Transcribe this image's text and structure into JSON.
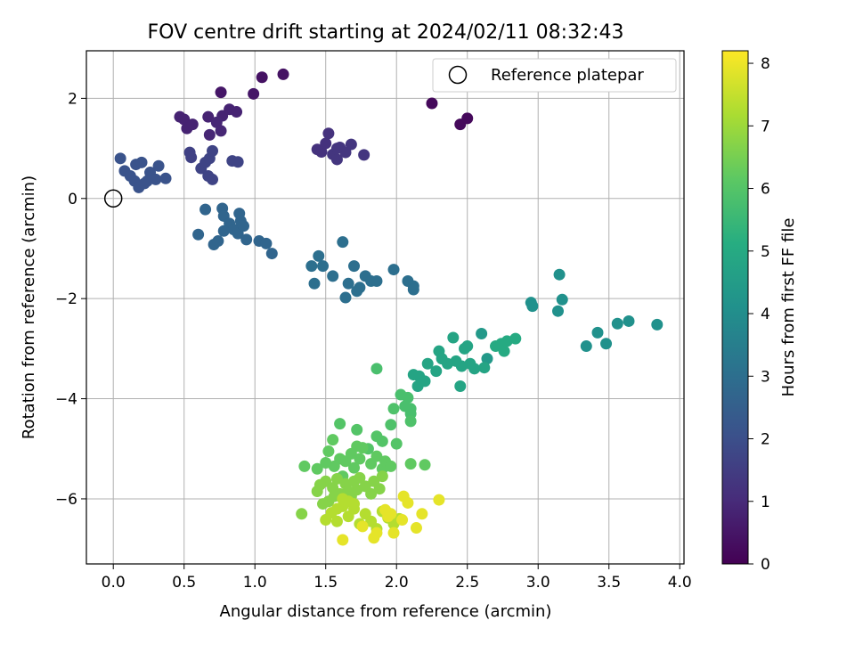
{
  "chart_data": {
    "type": "scatter",
    "title": "FOV centre drift starting at 2024/02/11 08:32:43",
    "xlabel": "Angular distance from reference (arcmin)",
    "ylabel": "Rotation from reference (arcmin)",
    "xlim": [
      -0.19,
      4.03
    ],
    "ylim": [
      -7.3,
      2.95
    ],
    "x_ticks": [
      "0.0",
      "0.5",
      "1.0",
      "1.5",
      "2.0",
      "2.5",
      "3.0",
      "3.5",
      "4.0"
    ],
    "y_ticks": [
      "2",
      "0",
      "−2",
      "−4",
      "−6"
    ],
    "grid": true,
    "legend": {
      "position": "top-right",
      "entries": [
        "Reference platepar"
      ]
    },
    "reference_point": {
      "x": 0.0,
      "y": 0.0
    },
    "colorbar": {
      "label": "Hours from first FF file",
      "range": [
        0,
        8.2
      ],
      "ticks": [
        "0",
        "1",
        "2",
        "3",
        "4",
        "5",
        "6",
        "7",
        "8"
      ],
      "colormap": "viridis"
    },
    "points": [
      [
        2.25,
        1.9,
        0.2
      ],
      [
        2.45,
        1.48,
        0.2
      ],
      [
        2.5,
        1.6,
        0.2
      ],
      [
        1.05,
        2.42,
        0.4
      ],
      [
        1.2,
        2.48,
        0.4
      ],
      [
        0.76,
        2.12,
        0.5
      ],
      [
        0.99,
        2.09,
        0.5
      ],
      [
        0.47,
        1.63,
        0.8
      ],
      [
        0.5,
        1.58,
        0.8
      ],
      [
        0.52,
        1.4,
        0.8
      ],
      [
        0.56,
        1.48,
        0.8
      ],
      [
        0.67,
        1.63,
        0.8
      ],
      [
        0.77,
        1.65,
        0.8
      ],
      [
        0.82,
        1.78,
        0.8
      ],
      [
        0.87,
        1.73,
        0.8
      ],
      [
        0.68,
        1.27,
        0.9
      ],
      [
        0.73,
        1.52,
        0.9
      ],
      [
        0.76,
        1.35,
        0.9
      ],
      [
        1.52,
        1.3,
        1.2
      ],
      [
        1.44,
        0.98,
        1.2
      ],
      [
        1.47,
        0.93,
        1.2
      ],
      [
        1.5,
        1.1,
        1.2
      ],
      [
        1.55,
        0.88,
        1.3
      ],
      [
        1.58,
        0.78,
        1.3
      ],
      [
        1.6,
        1.02,
        1.3
      ],
      [
        1.64,
        0.92,
        1.3
      ],
      [
        1.68,
        1.08,
        1.3
      ],
      [
        1.77,
        0.87,
        1.3
      ],
      [
        1.58,
        1.0,
        1.3
      ],
      [
        0.54,
        0.92,
        1.6
      ],
      [
        0.55,
        0.82,
        1.6
      ],
      [
        0.62,
        0.6,
        1.7
      ],
      [
        0.65,
        0.72,
        1.7
      ],
      [
        0.67,
        0.45,
        1.7
      ],
      [
        0.7,
        0.38,
        1.7
      ],
      [
        0.68,
        0.8,
        1.7
      ],
      [
        0.7,
        0.95,
        1.7
      ],
      [
        0.84,
        0.75,
        1.7
      ],
      [
        0.88,
        0.73,
        1.7
      ],
      [
        0.05,
        0.8,
        2.1
      ],
      [
        0.08,
        0.55,
        2.1
      ],
      [
        0.12,
        0.45,
        2.1
      ],
      [
        0.15,
        0.35,
        2.1
      ],
      [
        0.16,
        0.68,
        2.1
      ],
      [
        0.18,
        0.22,
        2.1
      ],
      [
        0.22,
        0.3,
        2.1
      ],
      [
        0.2,
        0.72,
        2.1
      ],
      [
        0.26,
        0.52,
        2.1
      ],
      [
        0.3,
        0.38,
        2.1
      ],
      [
        0.32,
        0.65,
        2.1
      ],
      [
        0.37,
        0.4,
        2.1
      ],
      [
        0.24,
        0.35,
        2.1
      ],
      [
        0.77,
        -0.2,
        2.7
      ],
      [
        0.78,
        -0.35,
        2.7
      ],
      [
        0.82,
        -0.5,
        2.7
      ],
      [
        0.85,
        -0.62,
        2.7
      ],
      [
        0.88,
        -0.7,
        2.7
      ],
      [
        0.9,
        -0.45,
        2.7
      ],
      [
        0.89,
        -0.3,
        2.7
      ],
      [
        0.94,
        -0.82,
        2.7
      ],
      [
        0.65,
        -0.22,
        2.7
      ],
      [
        0.6,
        -0.72,
        2.7
      ],
      [
        0.71,
        -0.92,
        2.7
      ],
      [
        0.74,
        -0.85,
        2.7
      ],
      [
        0.78,
        -0.65,
        2.7
      ],
      [
        0.92,
        -0.55,
        2.7
      ],
      [
        1.03,
        -0.85,
        2.7
      ],
      [
        1.08,
        -0.9,
        2.7
      ],
      [
        1.12,
        -1.1,
        2.7
      ],
      [
        1.4,
        -1.35,
        3.0
      ],
      [
        1.42,
        -1.7,
        3.0
      ],
      [
        1.45,
        -1.15,
        3.0
      ],
      [
        1.48,
        -1.35,
        3.0
      ],
      [
        1.55,
        -1.55,
        3.0
      ],
      [
        1.62,
        -0.87,
        3.0
      ],
      [
        1.64,
        -1.98,
        3.0
      ],
      [
        1.66,
        -1.7,
        3.0
      ],
      [
        1.7,
        -1.35,
        3.0
      ],
      [
        1.72,
        -1.85,
        3.0
      ],
      [
        1.74,
        -1.78,
        3.0
      ],
      [
        1.78,
        -1.55,
        3.0
      ],
      [
        1.82,
        -1.65,
        3.0
      ],
      [
        1.86,
        -1.65,
        3.0
      ],
      [
        1.98,
        -1.42,
        3.0
      ],
      [
        2.08,
        -1.65,
        3.0
      ],
      [
        2.12,
        -1.75,
        3.0
      ],
      [
        2.12,
        -1.82,
        3.0
      ],
      [
        3.15,
        -1.52,
        4.1
      ],
      [
        3.17,
        -2.02,
        4.1
      ],
      [
        2.95,
        -2.08,
        4.1
      ],
      [
        2.96,
        -2.15,
        4.1
      ],
      [
        3.14,
        -2.25,
        4.1
      ],
      [
        3.34,
        -2.95,
        4.1
      ],
      [
        3.42,
        -2.68,
        4.1
      ],
      [
        3.48,
        -2.9,
        4.1
      ],
      [
        3.56,
        -2.5,
        4.1
      ],
      [
        3.64,
        -2.45,
        4.1
      ],
      [
        3.84,
        -2.52,
        4.1
      ],
      [
        2.64,
        -3.2,
        4.4
      ],
      [
        2.6,
        -2.7,
        4.4
      ],
      [
        2.45,
        -3.75,
        4.8
      ],
      [
        2.62,
        -3.38,
        4.8
      ],
      [
        2.55,
        -3.4,
        4.8
      ],
      [
        2.52,
        -3.3,
        4.8
      ],
      [
        2.48,
        -3.0,
        4.8
      ],
      [
        2.46,
        -3.35,
        4.8
      ],
      [
        2.42,
        -3.25,
        4.8
      ],
      [
        2.4,
        -2.78,
        4.8
      ],
      [
        2.36,
        -3.3,
        4.8
      ],
      [
        2.3,
        -3.05,
        4.8
      ],
      [
        2.32,
        -3.2,
        4.8
      ],
      [
        2.28,
        -3.45,
        4.8
      ],
      [
        2.22,
        -3.3,
        4.8
      ],
      [
        2.16,
        -3.55,
        4.8
      ],
      [
        2.12,
        -3.52,
        4.8
      ],
      [
        2.15,
        -3.75,
        4.8
      ],
      [
        2.2,
        -3.65,
        4.8
      ],
      [
        2.5,
        -2.95,
        4.8
      ],
      [
        2.7,
        -2.95,
        5.0
      ],
      [
        2.76,
        -3.05,
        5.0
      ],
      [
        2.74,
        -2.9,
        5.0
      ],
      [
        2.78,
        -2.85,
        5.0
      ],
      [
        2.84,
        -2.8,
        5.0
      ],
      [
        2.08,
        -3.98,
        5.8
      ],
      [
        2.1,
        -4.2,
        5.8
      ],
      [
        2.1,
        -4.3,
        5.8
      ],
      [
        2.03,
        -3.92,
        5.8
      ],
      [
        2.06,
        -4.15,
        5.8
      ],
      [
        1.86,
        -3.4,
        5.8
      ],
      [
        2.1,
        -4.45,
        5.9
      ],
      [
        1.98,
        -4.2,
        5.9
      ],
      [
        1.96,
        -4.52,
        5.9
      ],
      [
        2.0,
        -4.9,
        6.0
      ],
      [
        1.6,
        -4.5,
        6.0
      ],
      [
        1.72,
        -4.62,
        6.0
      ],
      [
        1.8,
        -5.0,
        6.0
      ],
      [
        1.86,
        -4.75,
        6.0
      ],
      [
        1.9,
        -4.85,
        6.0
      ],
      [
        2.1,
        -5.3,
        6.2
      ],
      [
        2.2,
        -5.32,
        6.2
      ],
      [
        1.72,
        -4.95,
        6.2
      ],
      [
        1.55,
        -4.82,
        6.2
      ],
      [
        1.52,
        -5.05,
        6.2
      ],
      [
        1.6,
        -5.2,
        6.2
      ],
      [
        1.5,
        -5.28,
        6.2
      ],
      [
        1.44,
        -5.4,
        6.2
      ],
      [
        1.56,
        -5.35,
        6.2
      ],
      [
        1.64,
        -5.25,
        6.2
      ],
      [
        1.68,
        -5.1,
        6.2
      ],
      [
        1.74,
        -5.2,
        6.2
      ],
      [
        1.76,
        -4.98,
        6.2
      ],
      [
        1.82,
        -5.3,
        6.2
      ],
      [
        1.86,
        -5.15,
        6.2
      ],
      [
        1.9,
        -5.4,
        6.2
      ],
      [
        1.92,
        -5.25,
        6.2
      ],
      [
        1.96,
        -5.35,
        6.2
      ],
      [
        1.62,
        -5.55,
        6.2
      ],
      [
        1.7,
        -5.38,
        6.2
      ],
      [
        1.35,
        -5.35,
        6.2
      ],
      [
        1.44,
        -5.85,
        6.7
      ],
      [
        1.5,
        -5.65,
        6.7
      ],
      [
        1.55,
        -5.78,
        6.7
      ],
      [
        1.58,
        -5.6,
        6.7
      ],
      [
        1.6,
        -5.9,
        6.7
      ],
      [
        1.64,
        -5.7,
        6.7
      ],
      [
        1.68,
        -5.95,
        6.7
      ],
      [
        1.72,
        -5.82,
        6.7
      ],
      [
        1.74,
        -5.58,
        6.7
      ],
      [
        1.78,
        -5.75,
        6.7
      ],
      [
        1.82,
        -5.9,
        6.7
      ],
      [
        1.84,
        -5.65,
        6.7
      ],
      [
        1.88,
        -5.8,
        6.7
      ],
      [
        1.9,
        -5.55,
        6.7
      ],
      [
        1.52,
        -6.05,
        6.7
      ],
      [
        1.56,
        -5.95,
        6.7
      ],
      [
        1.48,
        -6.1,
        6.7
      ],
      [
        1.33,
        -6.3,
        6.7
      ],
      [
        1.46,
        -5.72,
        6.7
      ],
      [
        1.66,
        -5.85,
        6.7
      ],
      [
        1.7,
        -5.65,
        6.7
      ],
      [
        1.5,
        -6.42,
        7.3
      ],
      [
        1.54,
        -6.28,
        7.3
      ],
      [
        1.58,
        -6.45,
        7.3
      ],
      [
        1.62,
        -6.15,
        7.3
      ],
      [
        1.66,
        -6.35,
        7.3
      ],
      [
        1.7,
        -6.2,
        7.3
      ],
      [
        1.74,
        -6.5,
        7.3
      ],
      [
        1.78,
        -6.3,
        7.3
      ],
      [
        1.82,
        -6.45,
        7.3
      ],
      [
        1.86,
        -6.6,
        7.3
      ],
      [
        1.9,
        -6.25,
        7.3
      ],
      [
        1.94,
        -6.38,
        7.3
      ],
      [
        1.98,
        -6.5,
        7.3
      ],
      [
        2.02,
        -6.4,
        7.3
      ],
      [
        1.62,
        -6.0,
        7.3
      ],
      [
        1.66,
        -6.05,
        7.3
      ],
      [
        1.7,
        -6.1,
        7.3
      ],
      [
        1.58,
        -6.2,
        7.3
      ],
      [
        1.62,
        -6.82,
        7.9
      ],
      [
        1.76,
        -6.55,
        7.9
      ],
      [
        1.84,
        -6.78,
        7.9
      ],
      [
        1.86,
        -6.68,
        7.9
      ],
      [
        1.94,
        -6.35,
        7.9
      ],
      [
        1.98,
        -6.68,
        7.9
      ],
      [
        2.04,
        -6.42,
        7.9
      ],
      [
        2.05,
        -5.95,
        7.9
      ],
      [
        2.08,
        -6.08,
        7.9
      ],
      [
        2.14,
        -6.58,
        7.9
      ],
      [
        2.18,
        -6.3,
        7.9
      ],
      [
        2.3,
        -6.02,
        7.9
      ],
      [
        1.92,
        -6.22,
        7.9
      ],
      [
        1.96,
        -6.3,
        7.9
      ]
    ]
  }
}
